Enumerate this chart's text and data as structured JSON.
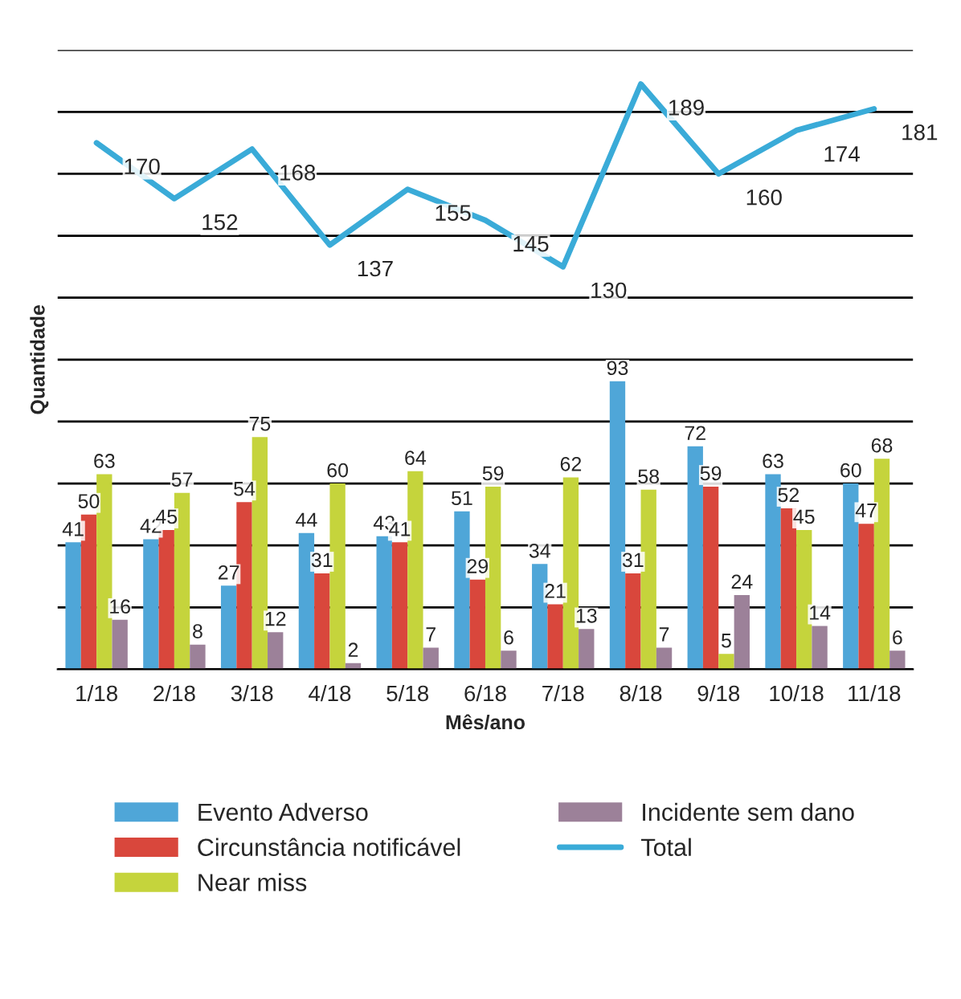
{
  "chart_data": {
    "type": "bar",
    "xlabel": "Mês/ano",
    "ylabel": "Quantidade",
    "categories": [
      "1/18",
      "2/18",
      "3/18",
      "4/18",
      "5/18",
      "6/18",
      "7/18",
      "8/18",
      "9/18",
      "10/18",
      "11/18"
    ],
    "series": [
      {
        "name": "Evento Adverso",
        "color": "#4fa6d8",
        "values": [
          41,
          42,
          27,
          44,
          43,
          51,
          34,
          93,
          72,
          63,
          60
        ]
      },
      {
        "name": "Circunstância notificável",
        "color": "#d9473c",
        "values": [
          50,
          45,
          54,
          31,
          41,
          29,
          21,
          31,
          59,
          52,
          47
        ]
      },
      {
        "name": "Near miss",
        "color": "#c5d43c",
        "values": [
          63,
          57,
          75,
          60,
          64,
          59,
          62,
          58,
          5,
          45,
          68
        ]
      },
      {
        "name": "Incidente sem dano",
        "color": "#9c8199",
        "values": [
          16,
          8,
          12,
          2,
          7,
          6,
          13,
          7,
          24,
          14,
          6
        ]
      },
      {
        "name": "Total",
        "type": "line",
        "color": "#3aabd8",
        "values": [
          170,
          152,
          168,
          137,
          155,
          145,
          130,
          189,
          160,
          174,
          181
        ]
      }
    ],
    "ylim": [
      0,
      200
    ],
    "yticks": [
      0,
      20,
      40,
      60,
      80,
      100,
      120,
      140,
      160,
      180,
      200
    ],
    "grid": "y",
    "tick_labels": "x",
    "data_labels": true,
    "legend": "bottom",
    "marker": "none"
  }
}
